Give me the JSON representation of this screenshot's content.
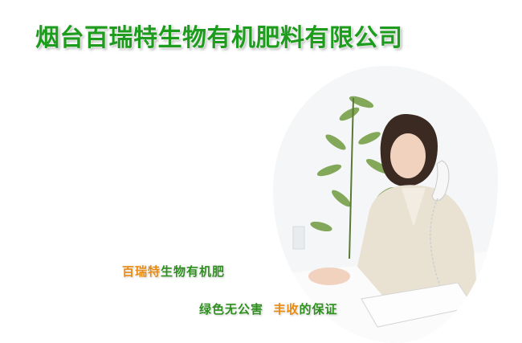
{
  "header": {
    "company_name": "烟台百瑞特生物有机肥料有限公司"
  },
  "slogans": {
    "line1_part1": "百瑞特",
    "line1_part2": "生物有机肥",
    "line2_part1": "绿色无公害",
    "line2_part2": "丰收",
    "line2_part3": "的保证"
  },
  "colors": {
    "title_green": "#1e9c1e",
    "accent_orange": "#e98b12",
    "slogan_green": "#2e8f1f"
  }
}
